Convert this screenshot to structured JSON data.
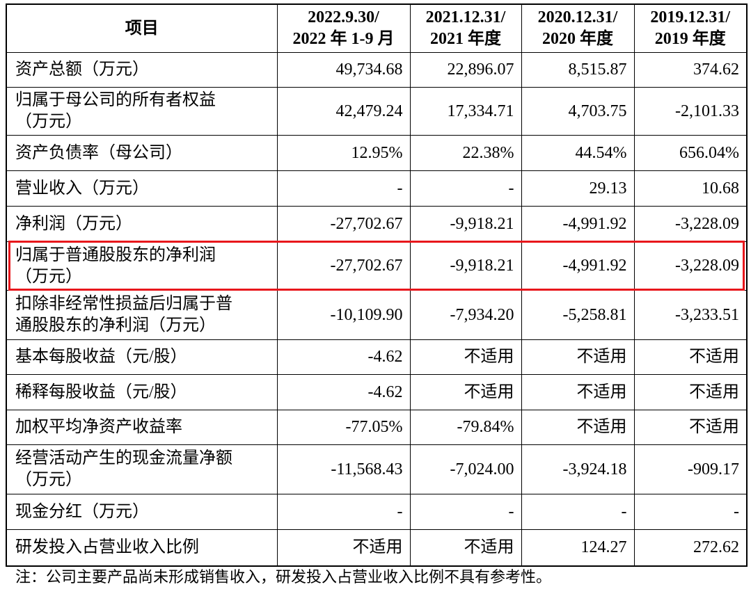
{
  "table": {
    "header": [
      [
        "项目"
      ],
      [
        "2022.9.30/",
        "2022 年 1-9 月"
      ],
      [
        "2021.12.31/",
        "2021 年度"
      ],
      [
        "2020.12.31/",
        "2020 年度"
      ],
      [
        "2019.12.31/",
        "2019 年度"
      ]
    ],
    "rows": [
      {
        "label": [
          "资产总额（万元）"
        ],
        "values": [
          "49,734.68",
          "22,896.07",
          "8,515.87",
          "374.62"
        ]
      },
      {
        "label": [
          "归属于母公司的所有者权益",
          "（万元）"
        ],
        "values": [
          "42,479.24",
          "17,334.71",
          "4,703.75",
          "-2,101.33"
        ]
      },
      {
        "label": [
          "资产负债率（母公司）"
        ],
        "values": [
          "12.95%",
          "22.38%",
          "44.54%",
          "656.04%"
        ]
      },
      {
        "label": [
          "营业收入（万元）"
        ],
        "values": [
          "-",
          "-",
          "29.13",
          "10.68"
        ]
      },
      {
        "label": [
          "净利润（万元）"
        ],
        "values": [
          "-27,702.67",
          "-9,918.21",
          "-4,991.92",
          "-3,228.09"
        ]
      },
      {
        "label": [
          "归属于普通股股东的净利润",
          "（万元）"
        ],
        "values": [
          "-27,702.67",
          "-9,918.21",
          "-4,991.92",
          "-3,228.09"
        ]
      },
      {
        "label": [
          "扣除非经常性损益后归属于普",
          "通股股东的净利润（万元）"
        ],
        "values": [
          "-10,109.90",
          "-7,934.20",
          "-5,258.81",
          "-3,233.51"
        ]
      },
      {
        "label": [
          "基本每股收益（元/股）"
        ],
        "values": [
          "-4.62",
          "不适用",
          "不适用",
          "不适用"
        ]
      },
      {
        "label": [
          "稀释每股收益（元/股）"
        ],
        "values": [
          "-4.62",
          "不适用",
          "不适用",
          "不适用"
        ]
      },
      {
        "label": [
          "加权平均净资产收益率"
        ],
        "values": [
          "-77.05%",
          "-79.84%",
          "不适用",
          "不适用"
        ]
      },
      {
        "label": [
          "经营活动产生的现金流量净额",
          "（万元）"
        ],
        "values": [
          "-11,568.43",
          "-7,024.00",
          "-3,924.18",
          "-909.17"
        ]
      },
      {
        "label": [
          "现金分红（万元）"
        ],
        "values": [
          "-",
          "-",
          "-",
          "-"
        ]
      },
      {
        "label": [
          "研发投入占营业收入比例"
        ],
        "values": [
          "不适用",
          "不适用",
          "124.27",
          "272.62"
        ]
      }
    ]
  },
  "note": "注：公司主要产品尚未形成销售收入，研发投入占营业收入比例不具有参考性。"
}
